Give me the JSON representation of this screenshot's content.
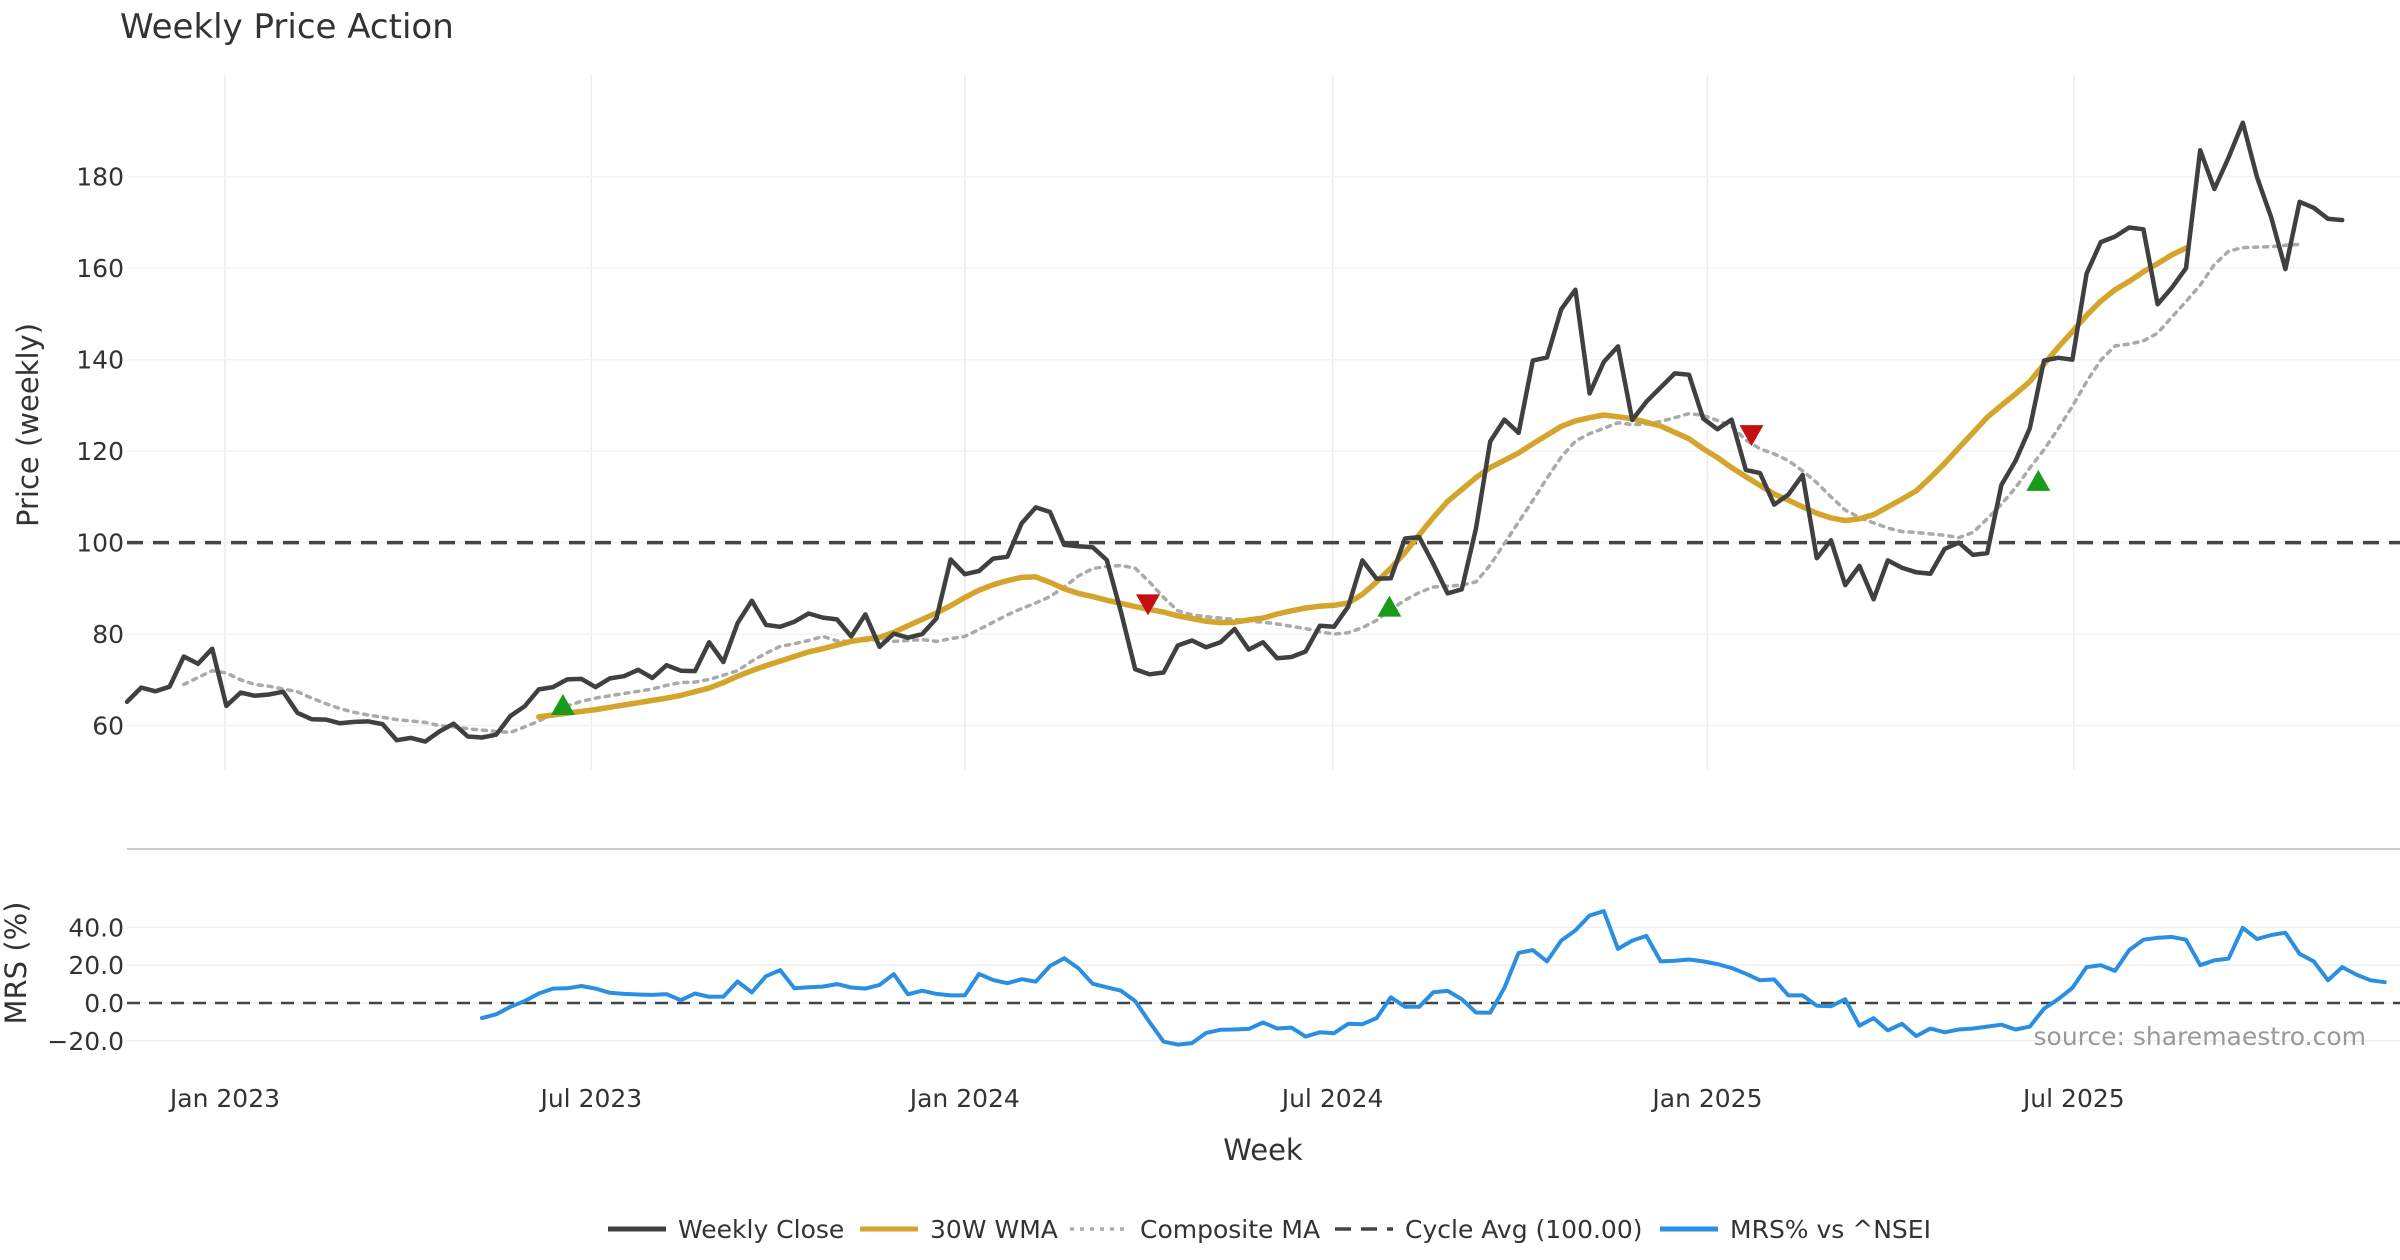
{
  "chart_data": [
    {
      "type": "line",
      "title": "Weekly Price Action",
      "ylabel": "Price (weekly)",
      "ylim": [
        50,
        200
      ],
      "yticks": [
        60,
        80,
        100,
        120,
        140,
        160,
        180
      ],
      "x_start_week": 0,
      "x_end_week": 166,
      "x_tick_labels": [
        {
          "label": "Jan 2023",
          "week": 6.9
        },
        {
          "label": "Jul 2023",
          "week": 32.7
        },
        {
          "label": "Jan 2024",
          "week": 59
        },
        {
          "label": "Jul 2024",
          "week": 84.9
        },
        {
          "label": "Jan 2025",
          "week": 111.3
        },
        {
          "label": "Jul 2025",
          "week": 137.1
        }
      ],
      "series": [
        {
          "name": "Weekly Close",
          "color": "#404040",
          "start_week": 0,
          "values": [
            65.2,
            68.3,
            67.5,
            68.5,
            75.1,
            73.5,
            76.8,
            64.3,
            67.2,
            66.5,
            66.8,
            67.4,
            62.8,
            61.4,
            61.3,
            60.5,
            60.8,
            60.9,
            60.3,
            56.8,
            57.3,
            56.5,
            58.7,
            60.4,
            57.6,
            57.4,
            58.0,
            62.1,
            64.2,
            67.9,
            68.4,
            70.1,
            70.2,
            68.4,
            70.3,
            70.8,
            72.2,
            70.4,
            73.2,
            72.0,
            71.9,
            78.2,
            73.9,
            82.4,
            87.3,
            82.0,
            81.6,
            82.7,
            84.5,
            83.6,
            83.2,
            79.5,
            84.3,
            77.2,
            80.1,
            79.2,
            80.0,
            83.4,
            96.3,
            93.1,
            93.8,
            96.5,
            96.9,
            104.2,
            107.7,
            106.7,
            99.5,
            99.2,
            99.0,
            96.2,
            84.8,
            72.3,
            71.2,
            71.6,
            77.5,
            78.6,
            77.1,
            78.2,
            81.1,
            76.6,
            78.2,
            74.7,
            75.0,
            76.2,
            81.8,
            81.6,
            86.0,
            96.1,
            92.1,
            92.2,
            100.9,
            101.2,
            95.3,
            88.9,
            89.8,
            103.1,
            122.1,
            126.9,
            124.0,
            139.8,
            140.5,
            151.0,
            155.3,
            132.6,
            139.5,
            142.9,
            126.8,
            130.8,
            133.9,
            137.0,
            136.7,
            127.1,
            124.8,
            126.9,
            115.9,
            115.2,
            108.3,
            110.5,
            114.8,
            96.6,
            100.5,
            90.7,
            94.9,
            87.6,
            96.1,
            94.5,
            93.5,
            93.2,
            98.6,
            100.0,
            97.3,
            97.7,
            112.6,
            117.9,
            125.0,
            139.8,
            140.4,
            140.0,
            158.8,
            165.7,
            166.9,
            168.9,
            168.5,
            152.1,
            155.7,
            160.0,
            185.8,
            177.3,
            184.2,
            191.8,
            179.9,
            171.1,
            159.8,
            174.5,
            173.2,
            170.8,
            170.5
          ]
        },
        {
          "name": "30W WMA",
          "color": "#d4a52c",
          "start_week": 29,
          "values": [
            61.9,
            62.3,
            62.7,
            63.1,
            63.5,
            64.0,
            64.5,
            65.0,
            65.5,
            66.0,
            66.6,
            67.4,
            68.2,
            69.4,
            70.8,
            72.0,
            73.1,
            74.1,
            75.1,
            76.1,
            76.8,
            77.6,
            78.4,
            78.9,
            79.3,
            80.4,
            81.8,
            83.2,
            84.6,
            86.2,
            88.0,
            89.6,
            90.8,
            91.7,
            92.4,
            92.5,
            91.3,
            89.9,
            88.9,
            88.2,
            87.4,
            86.7,
            86.0,
            85.4,
            84.8,
            84.0,
            83.4,
            82.8,
            82.5,
            82.6,
            83.1,
            83.5,
            84.4,
            85.1,
            85.7,
            86.1,
            86.3,
            86.8,
            88.7,
            91.4,
            94.4,
            97.8,
            101.7,
            105.5,
            109.0,
            111.6,
            114.2,
            116.4,
            118.0,
            119.6,
            121.6,
            123.5,
            125.4,
            126.6,
            127.3,
            127.9,
            127.5,
            127.1,
            126.3,
            125.5,
            124.1,
            122.7,
            120.5,
            118.6,
            116.4,
            114.4,
            112.5,
            110.6,
            109.3,
            107.8,
            106.4,
            105.4,
            104.8,
            105.2,
            106.1,
            107.8,
            109.5,
            111.3,
            114.2,
            117.3,
            120.7,
            124.0,
            127.4,
            130.0,
            132.5,
            135.2,
            139.0,
            142.7,
            146.1,
            149.7,
            152.8,
            155.3,
            157.1,
            159.2,
            161.0,
            162.9,
            164.4
          ]
        },
        {
          "name": "Composite MA",
          "color": "#aaaaaa",
          "start_week": 4,
          "values": [
            69.0,
            70.5,
            72.0,
            71.5,
            70.0,
            69.0,
            68.6,
            68.0,
            67.4,
            66.0,
            64.8,
            63.7,
            62.9,
            62.3,
            61.8,
            61.3,
            61.0,
            60.7,
            60.0,
            59.7,
            59.3,
            59.0,
            58.7,
            58.5,
            59.7,
            61.0,
            62.5,
            64.3,
            65.3,
            66.0,
            66.5,
            67.0,
            67.5,
            68.0,
            68.8,
            69.4,
            69.5,
            70.1,
            71.0,
            72.0,
            74.1,
            75.8,
            77.3,
            77.9,
            78.6,
            79.5,
            78.5,
            78.4,
            78.6,
            78.8,
            78.4,
            78.6,
            78.8,
            78.4,
            79.0,
            79.5,
            81.0,
            82.6,
            84.2,
            85.6,
            86.8,
            88.2,
            90.3,
            92.7,
            94.3,
            94.8,
            95.0,
            94.4,
            91.4,
            88.0,
            85.1,
            84.2,
            83.8,
            83.5,
            83.2,
            82.9,
            82.6,
            82.2,
            81.7,
            81.2,
            80.5,
            80.0,
            80.3,
            81.4,
            83.0,
            85.4,
            87.4,
            89.1,
            90.3,
            90.5,
            90.7,
            91.4,
            95.1,
            99.8,
            104.5,
            109.2,
            114.1,
            118.7,
            122.2,
            123.8,
            125.0,
            126.2,
            125.8,
            125.9,
            126.5,
            127.3,
            128.2,
            127.8,
            126.7,
            125.5,
            122.4,
            120.5,
            119.4,
            117.9,
            115.7,
            113.1,
            110.0,
            107.1,
            105.5,
            104.3,
            103.2,
            102.4,
            102.2,
            101.9,
            101.6,
            101.1,
            102.2,
            105.2,
            108.4,
            112.0,
            116.3,
            120.3,
            124.9,
            129.8,
            135.2,
            139.9,
            143.0,
            143.4,
            144.1,
            145.8,
            149.3,
            152.7,
            156.3,
            160.8,
            163.7,
            164.5,
            164.6,
            164.7,
            165.0,
            165.2
          ]
        },
        {
          "name": "Cycle Avg (100.00)",
          "color": "#444444",
          "constant": 100
        }
      ],
      "markers": [
        {
          "type": "buy",
          "week": 30.7,
          "value": 64.5,
          "color": "#1a9a1a"
        },
        {
          "type": "sell",
          "week": 71.9,
          "value": 86.5,
          "color": "#c41010"
        },
        {
          "type": "buy",
          "week": 88.9,
          "value": 86.0,
          "color": "#1a9a1a"
        },
        {
          "type": "sell",
          "week": 114.4,
          "value": 123.5,
          "color": "#c41010"
        },
        {
          "type": "buy",
          "week": 134.6,
          "value": 113.5,
          "color": "#1a9a1a"
        }
      ]
    },
    {
      "type": "line",
      "ylabel": "MRS (%)",
      "xlabel": "Week",
      "ylim": [
        -25,
        55
      ],
      "yticks": [
        -20.0,
        0.0,
        20.0,
        40.0
      ],
      "annotation": "source: sharemaestro.com",
      "series": [
        {
          "name": "MRS% vs ^NSEI",
          "color": "#2a8fe0",
          "start_week": 25,
          "values": [
            -8.0,
            -6.0,
            -2.0,
            1.0,
            5.0,
            7.6,
            7.8,
            9.0,
            7.6,
            5.4,
            4.8,
            4.5,
            4.3,
            4.7,
            1.5,
            5.0,
            3.3,
            3.4,
            11.4,
            5.6,
            14.2,
            17.4,
            7.8,
            8.3,
            8.7,
            10.0,
            8.2,
            7.6,
            9.6,
            15.3,
            4.6,
            6.5,
            4.8,
            4.0,
            4.0,
            15.4,
            12.1,
            10.5,
            12.6,
            11.3,
            19.6,
            23.7,
            18.4,
            10.2,
            8.3,
            6.5,
            1.0,
            -10.0,
            -20.5,
            -22.0,
            -21.2,
            -15.8,
            -14.2,
            -14.0,
            -13.7,
            -10.3,
            -13.5,
            -13.0,
            -17.8,
            -15.5,
            -16.0,
            -11.0,
            -11.2,
            -8.0,
            3.0,
            -2.0,
            -2.0,
            5.7,
            6.4,
            2.0,
            -5.0,
            -5.2,
            8.0,
            26.5,
            28.0,
            22.0,
            33.0,
            38.4,
            46.3,
            48.6,
            28.6,
            33.0,
            35.5,
            22.0,
            22.4,
            23.0,
            22.0,
            20.6,
            18.5,
            15.5,
            12.0,
            12.5,
            4.0,
            4.0,
            -1.5,
            -1.7,
            2.0,
            -12.0,
            -8.0,
            -14.5,
            -11.0,
            -17.5,
            -13.5,
            -15.5,
            -14.0,
            -13.5,
            -12.5,
            -11.5,
            -14.0,
            -12.5,
            -3.0,
            2.0,
            8.0,
            19.0,
            20.0,
            17.0,
            28.0,
            33.5,
            34.5,
            35.0,
            33.5,
            20.0,
            22.6,
            23.5,
            39.8,
            33.8,
            36.0,
            37.2,
            26.0,
            22.0,
            12.0,
            19.0,
            15.0,
            12.0,
            11.0
          ]
        },
        {
          "name": "MRS zero line",
          "color": "#444444",
          "constant": 0
        }
      ],
      "x_tick_labels": [
        {
          "label": "Jan 2023",
          "week": 6.9
        },
        {
          "label": "Jul 2023",
          "week": 32.7
        },
        {
          "label": "Jan 2024",
          "week": 59
        },
        {
          "label": "Jul 2024",
          "week": 84.9
        },
        {
          "label": "Jan 2025",
          "week": 111.3
        },
        {
          "label": "Jul 2025",
          "week": 137.1
        }
      ]
    }
  ],
  "legend": {
    "placement": "bottom-center",
    "entries": [
      {
        "label": "Weekly Close",
        "color": "#404040",
        "style": "solid"
      },
      {
        "label": "30W WMA",
        "color": "#d4a52c",
        "style": "solid"
      },
      {
        "label": "Composite MA",
        "color": "#aaaaaa",
        "style": "dotted"
      },
      {
        "label": "Cycle Avg (100.00)",
        "color": "#444444",
        "style": "dashed"
      },
      {
        "label": "MRS% vs ^NSEI",
        "color": "#2a8fe0",
        "style": "solid"
      }
    ]
  }
}
